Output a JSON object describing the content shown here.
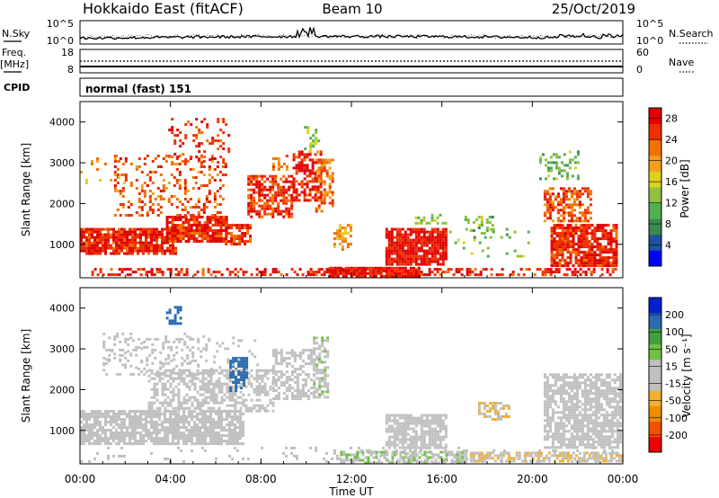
{
  "header": {
    "station": "Hokkaido East (fitACF)",
    "beam": "Beam 10",
    "date": "25/Oct/2019"
  },
  "noise_panel": {
    "left_label": "N.Sky",
    "right_label": "N.Search",
    "left_ticks": [
      "10^5",
      "10^0"
    ],
    "right_ticks": [
      "10^5",
      "10^0"
    ]
  },
  "freq_panel": {
    "left_label_1": "Freq.",
    "left_label_2": "[MHz]",
    "right_label": "Nave",
    "left_ticks": [
      "18",
      "8"
    ],
    "right_ticks": [
      "60",
      "0"
    ]
  },
  "cpid": {
    "label": "CPID",
    "value": "normal (fast) 151"
  },
  "chart_data": [
    {
      "type": "heatmap",
      "name": "power",
      "ylabel": "Slant Range [km]",
      "xlabel": "Time UT",
      "ylim": [
        180,
        4500
      ],
      "xlim": [
        0,
        24
      ],
      "x_ticks": [
        "00:00",
        "04:00",
        "08:00",
        "12:00",
        "16:00",
        "20:00",
        "00:00"
      ],
      "y_ticks": [
        "1000",
        "2000",
        "3000",
        "4000"
      ],
      "colorbar": {
        "label": "Power [dB]",
        "ticks": [
          "4",
          "8",
          "12",
          "16",
          "20",
          "24",
          "28"
        ],
        "range": [
          0,
          30
        ],
        "colors": [
          "#0000ff",
          "#2050a0",
          "#3a8a50",
          "#50b050",
          "#90c040",
          "#e0d020",
          "#f0a020",
          "#f07000",
          "#ee3000",
          "#e00000"
        ]
      },
      "regions": [
        {
          "t": [
            0,
            4.2
          ],
          "r": [
            800,
            1400
          ],
          "value": 27,
          "density": 0.85
        },
        {
          "t": [
            3.8,
            6.5
          ],
          "r": [
            1100,
            1700
          ],
          "value": 27,
          "density": 0.85
        },
        {
          "t": [
            6.4,
            7.5
          ],
          "r": [
            1000,
            1500
          ],
          "value": 26,
          "density": 0.7
        },
        {
          "t": [
            1.5,
            6.5
          ],
          "r": [
            1700,
            3200
          ],
          "value": 24,
          "density": 0.25
        },
        {
          "t": [
            3.9,
            6.6
          ],
          "r": [
            3000,
            4100
          ],
          "value": 25,
          "density": 0.2
        },
        {
          "t": [
            7.4,
            9.4
          ],
          "r": [
            1700,
            2700
          ],
          "value": 26,
          "density": 0.65
        },
        {
          "t": [
            9.4,
            10.6
          ],
          "r": [
            2100,
            3300
          ],
          "value": 27,
          "density": 0.6
        },
        {
          "t": [
            10.4,
            11.2
          ],
          "r": [
            1800,
            3100
          ],
          "value": 22,
          "density": 0.4
        },
        {
          "t": [
            8.5,
            9.2
          ],
          "r": [
            2800,
            3200
          ],
          "value": 22,
          "density": 0.4
        },
        {
          "t": [
            9.9,
            10.6
          ],
          "r": [
            3300,
            3900
          ],
          "value": 14,
          "density": 0.35
        },
        {
          "t": [
            11.2,
            12.0
          ],
          "r": [
            900,
            1500
          ],
          "value": 20,
          "density": 0.45
        },
        {
          "t": [
            13.5,
            16.2
          ],
          "r": [
            500,
            1400
          ],
          "value": 28,
          "density": 0.88
        },
        {
          "t": [
            14.8,
            16.2
          ],
          "r": [
            1500,
            1750
          ],
          "value": 14,
          "density": 0.35
        },
        {
          "t": [
            17.0,
            18.2
          ],
          "r": [
            1300,
            1700
          ],
          "value": 12,
          "density": 0.4
        },
        {
          "t": [
            0.5,
            23.8
          ],
          "r": [
            230,
            420
          ],
          "value": 27,
          "density": 0.45
        },
        {
          "t": [
            11.0,
            15.0
          ],
          "r": [
            230,
            450
          ],
          "value": 28,
          "density": 0.9
        },
        {
          "t": [
            20.5,
            22.6
          ],
          "r": [
            1600,
            2400
          ],
          "value": 24,
          "density": 0.6
        },
        {
          "t": [
            20.8,
            23.7
          ],
          "r": [
            500,
            1500
          ],
          "value": 27,
          "density": 0.8
        },
        {
          "t": [
            0.0,
            2.0
          ],
          "r": [
            2500,
            3200
          ],
          "value": 19,
          "density": 0.12
        },
        {
          "t": [
            16.2,
            20.0
          ],
          "r": [
            700,
            1400
          ],
          "value": 12,
          "density": 0.12
        },
        {
          "t": [
            20.3,
            22.0
          ],
          "r": [
            2600,
            3300
          ],
          "value": 12,
          "density": 0.25
        }
      ]
    },
    {
      "type": "heatmap",
      "name": "velocity",
      "ylabel": "Slant Range [km]",
      "xlabel": "Time UT",
      "ylim": [
        180,
        4500
      ],
      "xlim": [
        0,
        24
      ],
      "x_ticks": [
        "00:00",
        "04:00",
        "08:00",
        "12:00",
        "16:00",
        "20:00",
        "00:00"
      ],
      "y_ticks": [
        "1000",
        "2000",
        "3000",
        "4000"
      ],
      "colorbar": {
        "label": "Velocity [m s⁻¹]",
        "ticks": [
          "200",
          "100",
          "50",
          "15",
          "-15",
          "-50",
          "-100",
          "-200"
        ],
        "range": [
          -250,
          250
        ],
        "colors": [
          "#ee0000",
          "#f05000",
          "#f08c00",
          "#f0b030",
          "#c0c0c0",
          "#c0c0c0",
          "#70c040",
          "#40a040",
          "#2a6ab0",
          "#0022cc"
        ]
      },
      "regions": [
        {
          "t": [
            0,
            7.2
          ],
          "r": [
            700,
            1500
          ],
          "value": 0,
          "density": 0.8
        },
        {
          "t": [
            3.0,
            8.5
          ],
          "r": [
            1500,
            2500
          ],
          "value": 0,
          "density": 0.55
        },
        {
          "t": [
            8.5,
            10.4
          ],
          "r": [
            1800,
            3000
          ],
          "value": 0,
          "density": 0.5
        },
        {
          "t": [
            1.0,
            6.0
          ],
          "r": [
            2400,
            3400
          ],
          "value": 0,
          "density": 0.2
        },
        {
          "t": [
            10.3,
            11.0
          ],
          "r": [
            1800,
            3300
          ],
          "value": 40,
          "density": 0.6
        },
        {
          "t": [
            6.6,
            7.4
          ],
          "r": [
            2000,
            2800
          ],
          "value": 180,
          "density": 0.7
        },
        {
          "t": [
            3.8,
            4.4
          ],
          "r": [
            3600,
            4050
          ],
          "value": 180,
          "density": 0.55
        },
        {
          "t": [
            13.5,
            16.2
          ],
          "r": [
            600,
            1400
          ],
          "value": 0,
          "density": 0.8
        },
        {
          "t": [
            11.5,
            17.0
          ],
          "r": [
            230,
            500
          ],
          "value": 40,
          "density": 0.6
        },
        {
          "t": [
            17.0,
            24.0
          ],
          "r": [
            230,
            480
          ],
          "value": -45,
          "density": 0.65
        },
        {
          "t": [
            17.6,
            19.0
          ],
          "r": [
            1300,
            1700
          ],
          "value": -45,
          "density": 0.55
        },
        {
          "t": [
            20.5,
            23.9
          ],
          "r": [
            600,
            2400
          ],
          "value": 0,
          "density": 0.75
        },
        {
          "t": [
            0.0,
            24.0
          ],
          "r": [
            230,
            600
          ],
          "value": 0,
          "density": 0.12
        },
        {
          "t": [
            1.0,
            8.0
          ],
          "r": [
            2500,
            3300
          ],
          "value": 30,
          "density": 0.08
        }
      ]
    }
  ],
  "colors": {
    "axis": "#000000",
    "background": "#ffffff"
  }
}
